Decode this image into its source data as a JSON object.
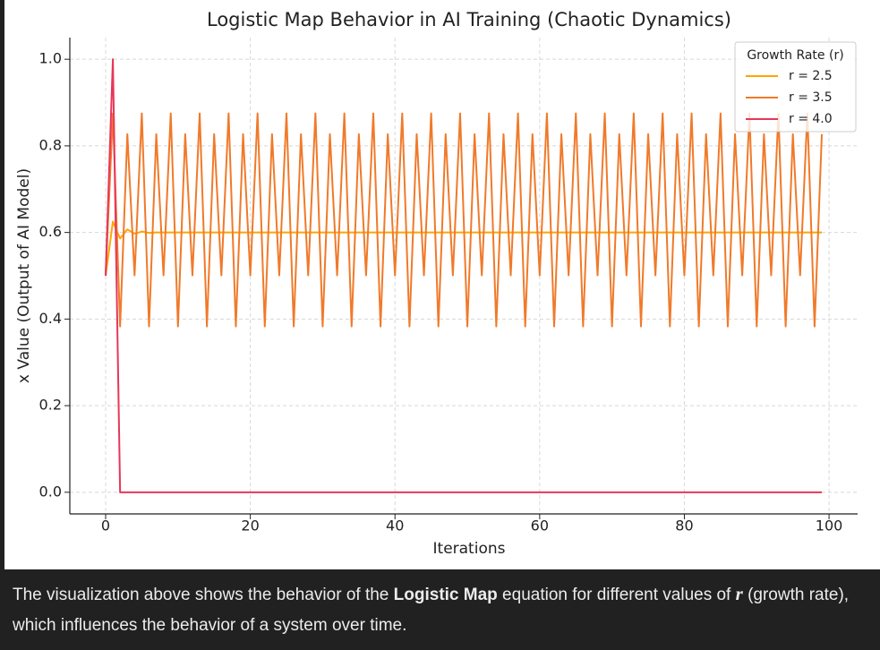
{
  "chart_data": {
    "type": "line",
    "title": "Logistic Map Behavior in AI Training (Chaotic Dynamics)",
    "xlabel": "Iterations",
    "ylabel": "x Value (Output of AI Model)",
    "x": [
      0,
      1,
      2,
      3,
      4,
      5,
      6,
      7,
      8,
      9,
      10,
      11,
      12,
      13,
      14,
      15,
      16,
      17,
      18,
      19,
      20,
      21,
      22,
      23,
      24,
      25,
      26,
      27,
      28,
      29,
      30,
      31,
      32,
      33,
      34,
      35,
      36,
      37,
      38,
      39,
      40,
      41,
      42,
      43,
      44,
      45,
      46,
      47,
      48,
      49,
      50,
      51,
      52,
      53,
      54,
      55,
      56,
      57,
      58,
      59,
      60,
      61,
      62,
      63,
      64,
      65,
      66,
      67,
      68,
      69,
      70,
      71,
      72,
      73,
      74,
      75,
      76,
      77,
      78,
      79,
      80,
      81,
      82,
      83,
      84,
      85,
      86,
      87,
      88,
      89,
      90,
      91,
      92,
      93,
      94,
      95,
      96,
      97,
      98,
      99
    ],
    "series": [
      {
        "name": "r = 2.5",
        "color": "#ffa500",
        "values": [
          0.5,
          0.625,
          0.586,
          0.607,
          0.597,
          0.602,
          0.599,
          0.6,
          0.6,
          0.6,
          0.6,
          0.6,
          0.6,
          0.6,
          0.6,
          0.6,
          0.6,
          0.6,
          0.6,
          0.6,
          0.6,
          0.6,
          0.6,
          0.6,
          0.6,
          0.6,
          0.6,
          0.6,
          0.6,
          0.6,
          0.6,
          0.6,
          0.6,
          0.6,
          0.6,
          0.6,
          0.6,
          0.6,
          0.6,
          0.6,
          0.6,
          0.6,
          0.6,
          0.6,
          0.6,
          0.6,
          0.6,
          0.6,
          0.6,
          0.6,
          0.6,
          0.6,
          0.6,
          0.6,
          0.6,
          0.6,
          0.6,
          0.6,
          0.6,
          0.6,
          0.6,
          0.6,
          0.6,
          0.6,
          0.6,
          0.6,
          0.6,
          0.6,
          0.6,
          0.6,
          0.6,
          0.6,
          0.6,
          0.6,
          0.6,
          0.6,
          0.6,
          0.6,
          0.6,
          0.6,
          0.6,
          0.6,
          0.6,
          0.6,
          0.6,
          0.6,
          0.6,
          0.6,
          0.6,
          0.6,
          0.6,
          0.6,
          0.6,
          0.6,
          0.6,
          0.6,
          0.6,
          0.6,
          0.6,
          0.6
        ]
      },
      {
        "name": "r = 3.5",
        "color": "#f07a2a",
        "values": [
          0.5,
          0.875,
          0.383,
          0.827,
          0.501,
          0.875,
          0.383,
          0.827,
          0.501,
          0.875,
          0.383,
          0.827,
          0.501,
          0.875,
          0.383,
          0.827,
          0.501,
          0.875,
          0.383,
          0.827,
          0.501,
          0.875,
          0.383,
          0.827,
          0.501,
          0.875,
          0.383,
          0.827,
          0.501,
          0.875,
          0.383,
          0.827,
          0.501,
          0.875,
          0.383,
          0.827,
          0.501,
          0.875,
          0.383,
          0.827,
          0.501,
          0.875,
          0.383,
          0.827,
          0.501,
          0.875,
          0.383,
          0.827,
          0.501,
          0.875,
          0.383,
          0.827,
          0.501,
          0.875,
          0.383,
          0.827,
          0.501,
          0.875,
          0.383,
          0.827,
          0.501,
          0.875,
          0.383,
          0.827,
          0.501,
          0.875,
          0.383,
          0.827,
          0.501,
          0.875,
          0.383,
          0.827,
          0.501,
          0.875,
          0.383,
          0.827,
          0.501,
          0.875,
          0.383,
          0.827,
          0.501,
          0.875,
          0.383,
          0.827,
          0.501,
          0.875,
          0.383,
          0.827,
          0.501,
          0.875,
          0.383,
          0.827,
          0.501,
          0.875,
          0.383,
          0.827,
          0.501,
          0.875,
          0.383,
          0.827
        ]
      },
      {
        "name": "r = 4.0",
        "color": "#e8365a",
        "values": [
          0.5,
          1.0,
          0,
          0,
          0,
          0,
          0,
          0,
          0,
          0,
          0,
          0,
          0,
          0,
          0,
          0,
          0,
          0,
          0,
          0,
          0,
          0,
          0,
          0,
          0,
          0,
          0,
          0,
          0,
          0,
          0,
          0,
          0,
          0,
          0,
          0,
          0,
          0,
          0,
          0,
          0,
          0,
          0,
          0,
          0,
          0,
          0,
          0,
          0,
          0,
          0,
          0,
          0,
          0,
          0,
          0,
          0,
          0,
          0,
          0,
          0,
          0,
          0,
          0,
          0,
          0,
          0,
          0,
          0,
          0,
          0,
          0,
          0,
          0,
          0,
          0,
          0,
          0,
          0,
          0,
          0,
          0,
          0,
          0,
          0,
          0,
          0,
          0,
          0,
          0,
          0,
          0,
          0,
          0,
          0,
          0,
          0,
          0,
          0,
          0
        ]
      }
    ],
    "xlim": [
      -4.95,
      103.95
    ],
    "ylim": [
      -0.05,
      1.05
    ],
    "xticks": [
      0,
      20,
      40,
      60,
      80,
      100
    ],
    "yticks": [
      {
        "value": 0,
        "label": "0.0"
      },
      0.2,
      0.4,
      0.6,
      0.8,
      {
        "value": 1,
        "label": "1.0"
      }
    ],
    "grid": true,
    "legend_title": "Growth Rate (r)",
    "legend_position": "upper-right"
  },
  "caption": {
    "parts": [
      "The visualization above shows the behavior of the ",
      "Logistic Map",
      " equation for different values of ",
      "r",
      " (growth rate), which influences the behavior of a system over time."
    ]
  }
}
